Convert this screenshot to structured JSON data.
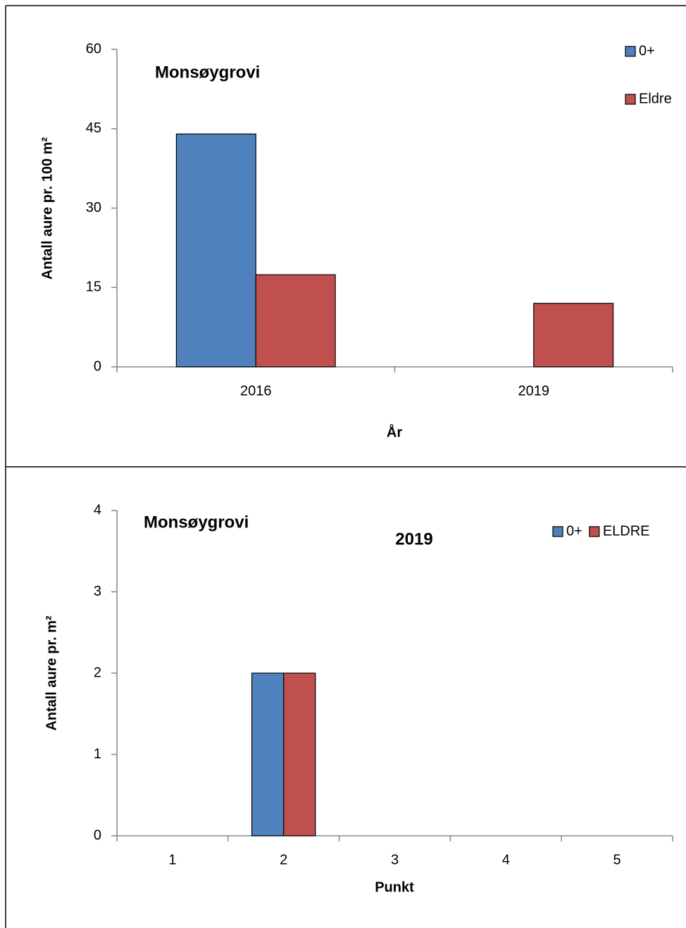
{
  "chart_data": [
    {
      "type": "bar",
      "title": "Monsøygrovi",
      "x_label": "År",
      "y_label": "Antall aure pr. 100 m²",
      "categories": [
        "2016",
        "2019"
      ],
      "series": [
        {
          "name": "0+",
          "color": "#4f81bd",
          "values": [
            44,
            0
          ]
        },
        {
          "name": "Eldre",
          "color": "#c0504d",
          "values": [
            17.4,
            12
          ]
        }
      ],
      "ylim": [
        0,
        60
      ],
      "yticks": [
        0,
        15,
        30,
        45,
        60
      ]
    },
    {
      "type": "bar",
      "title": "Monsøygrovi",
      "subtitle": "2019",
      "x_label": "Punkt",
      "y_label": "Antall aure pr. m²",
      "categories": [
        "1",
        "2",
        "3",
        "4",
        "5"
      ],
      "series": [
        {
          "name": "0+",
          "color": "#4f81bd",
          "values": [
            0,
            2,
            0,
            0,
            0
          ]
        },
        {
          "name": "ELDRE",
          "color": "#c0504d",
          "values": [
            0,
            2,
            0,
            0,
            0
          ]
        }
      ],
      "ylim": [
        0,
        4
      ],
      "yticks": [
        0,
        1,
        2,
        3,
        4
      ]
    }
  ]
}
